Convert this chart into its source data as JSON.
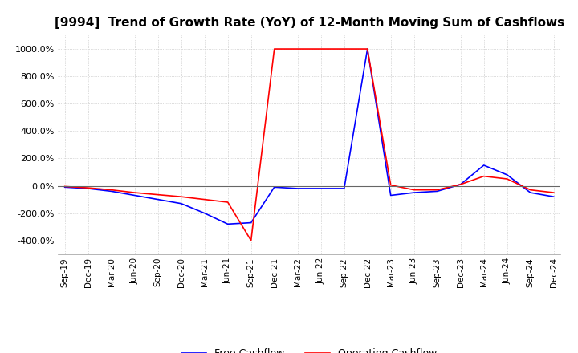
{
  "title": "[9994]  Trend of Growth Rate (YoY) of 12-Month Moving Sum of Cashflows",
  "title_fontsize": 11,
  "ylim": [
    -500,
    1100
  ],
  "yticks": [
    -400,
    -200,
    0,
    200,
    400,
    600,
    800,
    1000
  ],
  "ytick_labels": [
    "-400.0%",
    "-200.0%",
    "0.0%",
    "200.0%",
    "400.0%",
    "600.0%",
    "800.0%",
    "1000.0%"
  ],
  "background_color": "#ffffff",
  "grid_color": "#bbbbbb",
  "operating_color": "#ff0000",
  "free_color": "#0000ff",
  "x_labels": [
    "Sep-19",
    "Dec-19",
    "Mar-20",
    "Jun-20",
    "Sep-20",
    "Dec-20",
    "Mar-21",
    "Jun-21",
    "Sep-21",
    "Dec-21",
    "Mar-22",
    "Jun-22",
    "Sep-22",
    "Dec-22",
    "Mar-23",
    "Jun-23",
    "Sep-23",
    "Dec-23",
    "Mar-24",
    "Jun-24",
    "Sep-24",
    "Dec-24"
  ],
  "operating_cashflow": [
    -5,
    -15,
    -30,
    -50,
    -65,
    -80,
    -100,
    -120,
    -400,
    1000,
    1000,
    1000,
    1000,
    1000,
    5,
    -30,
    -30,
    10,
    70,
    50,
    -30,
    -50
  ],
  "free_cashflow": [
    -10,
    -20,
    -40,
    -70,
    -100,
    -130,
    -200,
    -280,
    -270,
    -10,
    -20,
    -20,
    -20,
    1000,
    -70,
    -50,
    -40,
    10,
    150,
    80,
    -50,
    -80
  ]
}
